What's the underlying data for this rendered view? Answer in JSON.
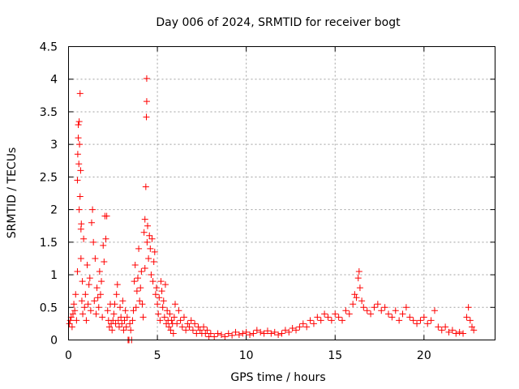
{
  "chart_data": {
    "type": "scatter",
    "title": "Day 006 of 2024, SRMTID for receiver bogt",
    "xlabel": "GPS time / hours",
    "ylabel": "SRMTID / TECUs",
    "xlim": [
      0,
      24
    ],
    "ylim": [
      0,
      4.5
    ],
    "xticks": [
      0,
      5,
      10,
      15,
      20
    ],
    "xtick_labels": [
      "0",
      "5",
      "10",
      "15",
      "20"
    ],
    "yticks": [
      0,
      0.5,
      1,
      1.5,
      2,
      2.5,
      3,
      3.5,
      4,
      4.5
    ],
    "ytick_labels": [
      "0",
      "0.5",
      "1",
      "1.5",
      "2",
      "2.5",
      "3",
      "3.5",
      "4",
      "4.5"
    ],
    "grid": true,
    "marker": "plus",
    "series": [
      {
        "name": "SRMTID",
        "color": "#ff0000",
        "points": [
          [
            0.05,
            0.25
          ],
          [
            0.1,
            0.3
          ],
          [
            0.15,
            0.35
          ],
          [
            0.2,
            0.2
          ],
          [
            0.25,
            0.4
          ],
          [
            0.3,
            0.55
          ],
          [
            0.35,
            0.45
          ],
          [
            0.4,
            0.7
          ],
          [
            0.45,
            0.3
          ],
          [
            0.5,
            1.05
          ],
          [
            0.5,
            2.45
          ],
          [
            0.52,
            2.85
          ],
          [
            0.55,
            3.1
          ],
          [
            0.55,
            3.3
          ],
          [
            0.58,
            2.7
          ],
          [
            0.6,
            2.0
          ],
          [
            0.6,
            3.35
          ],
          [
            0.62,
            3.0
          ],
          [
            0.65,
            2.2
          ],
          [
            0.65,
            3.78
          ],
          [
            0.68,
            2.6
          ],
          [
            0.7,
            1.7
          ],
          [
            0.7,
            1.25
          ],
          [
            0.72,
            1.78
          ],
          [
            0.75,
            0.6
          ],
          [
            0.78,
            0.9
          ],
          [
            0.8,
            0.4
          ],
          [
            0.85,
            1.55
          ],
          [
            0.9,
            0.5
          ],
          [
            0.95,
            0.7
          ],
          [
            1.0,
            0.3
          ],
          [
            1.05,
            1.15
          ],
          [
            1.1,
            0.55
          ],
          [
            1.15,
            0.85
          ],
          [
            1.2,
            0.95
          ],
          [
            1.25,
            0.45
          ],
          [
            1.3,
            1.8
          ],
          [
            1.35,
            2.0
          ],
          [
            1.4,
            1.5
          ],
          [
            1.45,
            0.6
          ],
          [
            1.5,
            1.25
          ],
          [
            1.55,
            0.4
          ],
          [
            1.6,
            0.8
          ],
          [
            1.65,
            0.65
          ],
          [
            1.7,
            0.5
          ],
          [
            1.75,
            1.05
          ],
          [
            1.8,
            0.7
          ],
          [
            1.85,
            0.9
          ],
          [
            1.9,
            0.35
          ],
          [
            1.95,
            1.45
          ],
          [
            2.0,
            1.2
          ],
          [
            2.05,
            1.9
          ],
          [
            2.1,
            1.55
          ],
          [
            2.15,
            1.9
          ],
          [
            2.2,
            0.45
          ],
          [
            2.25,
            0.3
          ],
          [
            2.3,
            0.2
          ],
          [
            2.35,
            0.55
          ],
          [
            2.4,
            0.25
          ],
          [
            2.45,
            0.15
          ],
          [
            2.5,
            0.3
          ],
          [
            2.55,
            0.4
          ],
          [
            2.6,
            0.55
          ],
          [
            2.65,
            0.25
          ],
          [
            2.7,
            0.7
          ],
          [
            2.75,
            0.85
          ],
          [
            2.8,
            0.3
          ],
          [
            2.85,
            0.2
          ],
          [
            2.9,
            0.5
          ],
          [
            2.95,
            0.35
          ],
          [
            3.0,
            0.25
          ],
          [
            3.05,
            0.6
          ],
          [
            3.1,
            0.15
          ],
          [
            3.15,
            0.3
          ],
          [
            3.2,
            0.45
          ],
          [
            3.25,
            0.2
          ],
          [
            3.3,
            0.35
          ],
          [
            3.35,
            0.0
          ],
          [
            3.4,
            0.0
          ],
          [
            3.45,
            0.25
          ],
          [
            3.5,
            0.15
          ],
          [
            3.55,
            0.0
          ],
          [
            3.6,
            0.3
          ],
          [
            3.65,
            0.45
          ],
          [
            3.7,
            0.9
          ],
          [
            3.75,
            1.15
          ],
          [
            3.8,
            0.5
          ],
          [
            3.85,
            0.75
          ],
          [
            3.9,
            0.95
          ],
          [
            3.95,
            1.4
          ],
          [
            4.0,
            0.6
          ],
          [
            4.05,
            0.8
          ],
          [
            4.1,
            1.05
          ],
          [
            4.15,
            0.55
          ],
          [
            4.2,
            0.35
          ],
          [
            4.25,
            1.65
          ],
          [
            4.3,
            1.85
          ],
          [
            4.3,
            1.1
          ],
          [
            4.35,
            2.35
          ],
          [
            4.38,
            3.42
          ],
          [
            4.4,
            3.66
          ],
          [
            4.4,
            4.01
          ],
          [
            4.42,
            1.5
          ],
          [
            4.45,
            1.75
          ],
          [
            4.5,
            1.25
          ],
          [
            4.55,
            1.6
          ],
          [
            4.6,
            1.4
          ],
          [
            4.65,
            1.0
          ],
          [
            4.7,
            1.55
          ],
          [
            4.75,
            0.9
          ],
          [
            4.8,
            1.2
          ],
          [
            4.85,
            1.35
          ],
          [
            4.9,
            0.7
          ],
          [
            4.95,
            0.8
          ],
          [
            5.0,
            0.55
          ],
          [
            5.05,
            0.4
          ],
          [
            5.1,
            0.65
          ],
          [
            5.15,
            0.3
          ],
          [
            5.2,
            0.9
          ],
          [
            5.25,
            0.75
          ],
          [
            5.3,
            0.5
          ],
          [
            5.35,
            0.6
          ],
          [
            5.4,
            0.35
          ],
          [
            5.45,
            0.85
          ],
          [
            5.5,
            0.25
          ],
          [
            5.55,
            0.45
          ],
          [
            5.6,
            0.3
          ],
          [
            5.65,
            0.2
          ],
          [
            5.7,
            0.4
          ],
          [
            5.75,
            0.15
          ],
          [
            5.8,
            0.3
          ],
          [
            5.85,
            0.25
          ],
          [
            5.9,
            0.1
          ],
          [
            5.95,
            0.35
          ],
          [
            6.0,
            0.55
          ],
          [
            6.1,
            0.25
          ],
          [
            6.2,
            0.45
          ],
          [
            6.3,
            0.3
          ],
          [
            6.4,
            0.2
          ],
          [
            6.5,
            0.35
          ],
          [
            6.6,
            0.15
          ],
          [
            6.7,
            0.25
          ],
          [
            6.8,
            0.2
          ],
          [
            6.9,
            0.3
          ],
          [
            7.0,
            0.15
          ],
          [
            7.1,
            0.25
          ],
          [
            7.2,
            0.1
          ],
          [
            7.3,
            0.2
          ],
          [
            7.4,
            0.15
          ],
          [
            7.5,
            0.1
          ],
          [
            7.6,
            0.2
          ],
          [
            7.7,
            0.1
          ],
          [
            7.8,
            0.15
          ],
          [
            7.9,
            0.05
          ],
          [
            8.0,
            0.1
          ],
          [
            8.2,
            0.05
          ],
          [
            8.4,
            0.1
          ],
          [
            8.6,
            0.08
          ],
          [
            8.8,
            0.05
          ],
          [
            9.0,
            0.1
          ],
          [
            9.2,
            0.07
          ],
          [
            9.4,
            0.12
          ],
          [
            9.6,
            0.08
          ],
          [
            9.8,
            0.1
          ],
          [
            10.0,
            0.12
          ],
          [
            10.2,
            0.08
          ],
          [
            10.4,
            0.1
          ],
          [
            10.6,
            0.15
          ],
          [
            10.8,
            0.12
          ],
          [
            11.0,
            0.1
          ],
          [
            11.2,
            0.14
          ],
          [
            11.4,
            0.1
          ],
          [
            11.6,
            0.12
          ],
          [
            11.8,
            0.08
          ],
          [
            12.0,
            0.1
          ],
          [
            12.2,
            0.15
          ],
          [
            12.4,
            0.12
          ],
          [
            12.6,
            0.18
          ],
          [
            12.8,
            0.15
          ],
          [
            13.0,
            0.2
          ],
          [
            13.2,
            0.25
          ],
          [
            13.4,
            0.2
          ],
          [
            13.6,
            0.3
          ],
          [
            13.8,
            0.25
          ],
          [
            14.0,
            0.35
          ],
          [
            14.2,
            0.3
          ],
          [
            14.4,
            0.4
          ],
          [
            14.6,
            0.35
          ],
          [
            14.8,
            0.3
          ],
          [
            15.0,
            0.4
          ],
          [
            15.2,
            0.35
          ],
          [
            15.4,
            0.3
          ],
          [
            15.6,
            0.45
          ],
          [
            15.8,
            0.4
          ],
          [
            16.0,
            0.55
          ],
          [
            16.1,
            0.7
          ],
          [
            16.2,
            0.65
          ],
          [
            16.3,
            0.95
          ],
          [
            16.35,
            1.05
          ],
          [
            16.4,
            0.8
          ],
          [
            16.5,
            0.6
          ],
          [
            16.6,
            0.5
          ],
          [
            16.8,
            0.45
          ],
          [
            17.0,
            0.4
          ],
          [
            17.2,
            0.5
          ],
          [
            17.4,
            0.55
          ],
          [
            17.6,
            0.45
          ],
          [
            17.8,
            0.5
          ],
          [
            18.0,
            0.4
          ],
          [
            18.2,
            0.35
          ],
          [
            18.4,
            0.45
          ],
          [
            18.6,
            0.3
          ],
          [
            18.8,
            0.4
          ],
          [
            19.0,
            0.5
          ],
          [
            19.2,
            0.35
          ],
          [
            19.4,
            0.3
          ],
          [
            19.6,
            0.25
          ],
          [
            19.8,
            0.3
          ],
          [
            20.0,
            0.35
          ],
          [
            20.2,
            0.25
          ],
          [
            20.4,
            0.3
          ],
          [
            20.6,
            0.45
          ],
          [
            20.8,
            0.2
          ],
          [
            21.0,
            0.15
          ],
          [
            21.2,
            0.2
          ],
          [
            21.4,
            0.12
          ],
          [
            21.6,
            0.15
          ],
          [
            21.8,
            0.1
          ],
          [
            22.0,
            0.12
          ],
          [
            22.2,
            0.1
          ],
          [
            22.4,
            0.35
          ],
          [
            22.5,
            0.5
          ],
          [
            22.6,
            0.3
          ],
          [
            22.7,
            0.2
          ],
          [
            22.8,
            0.15
          ]
        ]
      }
    ]
  }
}
